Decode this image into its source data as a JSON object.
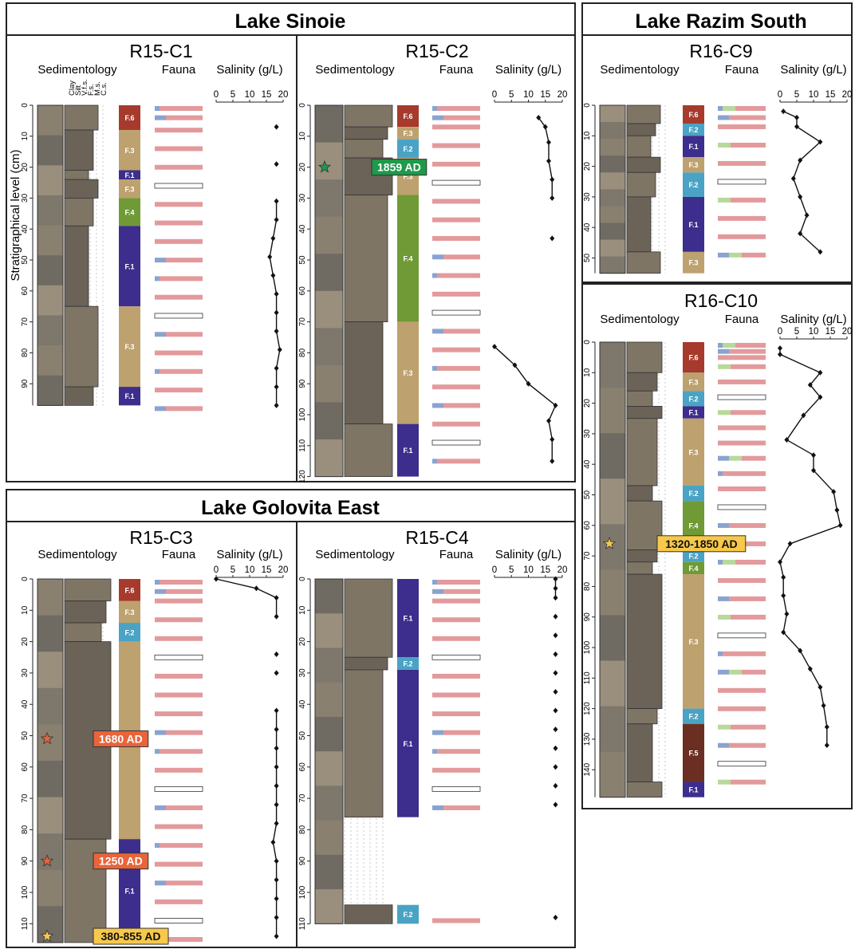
{
  "panels": [
    {
      "title": "Lake Sinoie"
    },
    {
      "title": "Lake Razim South"
    },
    {
      "title": "Lake Golovita East"
    }
  ],
  "y_axis_label": "Stratigraphical level (cm)",
  "headers": {
    "sedimentology": "Sedimentology",
    "fauna": "Fauna",
    "salinity": "Salinity (g/L)"
  },
  "grain_size_labels": [
    "Clay",
    "Silt",
    "V.f.s.",
    "F.s.",
    "M.s.",
    "C.s."
  ],
  "salinity_ticks": [
    0,
    5,
    10,
    15,
    20
  ],
  "colors": {
    "F.1": "#3d2d8c",
    "F.2": "#4aa3c4",
    "F.3": "#bda16e",
    "F.4": "#6f9a35",
    "F.5": "#6a2e22",
    "F.6": "#a63a2c",
    "fauna_pink": "#e39a9c",
    "fauna_blue": "#8aa3cf",
    "fauna_green": "#b8d99a",
    "date_orange": "#e8643a",
    "date_green": "#1e9a4a",
    "date_yellow": "#f7c84a"
  },
  "cores": [
    {
      "id": "R15-C1",
      "depth_ticks": [
        0,
        10,
        20,
        30,
        40,
        50,
        60,
        70,
        80,
        90
      ],
      "units": [
        {
          "label": "F.6",
          "top": 0,
          "bottom": 8
        },
        {
          "label": "F.3",
          "top": 8,
          "bottom": 21
        },
        {
          "label": "F.1",
          "top": 21,
          "bottom": 24
        },
        {
          "label": "F.3",
          "top": 24,
          "bottom": 30
        },
        {
          "label": "F.4",
          "top": 30,
          "bottom": 39
        },
        {
          "label": "F.1",
          "top": 39,
          "bottom": 65
        },
        {
          "label": "F.3",
          "top": 65,
          "bottom": 91
        },
        {
          "label": "F.1",
          "top": 91,
          "bottom": 97
        }
      ],
      "fauna_depths": [
        0,
        3,
        7,
        13,
        19,
        25,
        31,
        37,
        43,
        49,
        55,
        61,
        67,
        73,
        79,
        85,
        91,
        97
      ],
      "salinity": [
        [
          18,
          7
        ],
        [
          18,
          19
        ],
        [
          18,
          31
        ],
        [
          18,
          37
        ],
        [
          17,
          43
        ],
        [
          16,
          49
        ],
        [
          17,
          55
        ],
        [
          18,
          61
        ],
        [
          18,
          67
        ],
        [
          18,
          73
        ],
        [
          19,
          79
        ],
        [
          18,
          85
        ],
        [
          18,
          91
        ],
        [
          18,
          97
        ]
      ],
      "salinity_line": [
        [
          18,
          31
        ],
        [
          18,
          37
        ],
        [
          17,
          43
        ],
        [
          16,
          49
        ],
        [
          17,
          55
        ],
        [
          18,
          61
        ],
        [
          18,
          67
        ],
        [
          18,
          73
        ],
        [
          19,
          79
        ],
        [
          18,
          85
        ],
        [
          18,
          91
        ],
        [
          18,
          97
        ]
      ],
      "dates": []
    },
    {
      "id": "R15-C2",
      "depth_ticks": [
        0,
        10,
        20,
        30,
        40,
        50,
        60,
        70,
        80,
        90,
        100,
        110,
        120
      ],
      "units": [
        {
          "label": "F.6",
          "top": 0,
          "bottom": 7
        },
        {
          "label": "F.3",
          "top": 7,
          "bottom": 11
        },
        {
          "label": "F.2",
          "top": 11,
          "bottom": 17
        },
        {
          "label": "F.3",
          "top": 17,
          "bottom": 29
        },
        {
          "label": "F.4",
          "top": 29,
          "bottom": 70
        },
        {
          "label": "F.3",
          "top": 70,
          "bottom": 103
        },
        {
          "label": "F.1",
          "top": 103,
          "bottom": 120
        }
      ],
      "fauna_depths": [
        0,
        3,
        6,
        12,
        18,
        24,
        30,
        36,
        42,
        48,
        54,
        60,
        66,
        72,
        78,
        84,
        90,
        96,
        102,
        108,
        114
      ],
      "salinity": [
        [
          13,
          4
        ],
        [
          15,
          7
        ],
        [
          16,
          12
        ],
        [
          16,
          18
        ],
        [
          17,
          24
        ],
        [
          17,
          30
        ],
        [
          17,
          43
        ],
        [
          0,
          78
        ],
        [
          6,
          84
        ],
        [
          10,
          90
        ],
        [
          18,
          97
        ],
        [
          16,
          102
        ],
        [
          17,
          108
        ],
        [
          17,
          115
        ]
      ],
      "salinity_line": [
        [
          13,
          4
        ],
        [
          15,
          7
        ],
        [
          16,
          12
        ],
        [
          16,
          18
        ],
        [
          17,
          24
        ],
        [
          17,
          30
        ]
      ],
      "salinity_line2": [
        [
          0,
          78
        ],
        [
          6,
          84
        ],
        [
          10,
          90
        ],
        [
          18,
          97
        ],
        [
          16,
          102
        ],
        [
          17,
          108
        ],
        [
          17,
          115
        ]
      ],
      "dates": [
        {
          "label": "1859 AD",
          "depth": 20,
          "star_color": "date_green"
        }
      ]
    },
    {
      "id": "R16-C9",
      "depth_ticks": [
        0,
        10,
        20,
        30,
        40,
        50
      ],
      "units": [
        {
          "label": "F.6",
          "top": 0,
          "bottom": 6
        },
        {
          "label": "F.2",
          "top": 6,
          "bottom": 10
        },
        {
          "label": "F.1",
          "top": 10,
          "bottom": 17
        },
        {
          "label": "F.3",
          "top": 17,
          "bottom": 22
        },
        {
          "label": "F.2",
          "top": 22,
          "bottom": 30
        },
        {
          "label": "F.1",
          "top": 30,
          "bottom": 48
        },
        {
          "label": "F.3",
          "top": 48,
          "bottom": 55
        }
      ],
      "fauna_depths": [
        0,
        3,
        6,
        12,
        18,
        24,
        30,
        36,
        42,
        48
      ],
      "salinity": [
        [
          1,
          2
        ],
        [
          5,
          4
        ],
        [
          5,
          7
        ],
        [
          12,
          12
        ],
        [
          6,
          18
        ],
        [
          4,
          24
        ],
        [
          6,
          30
        ],
        [
          8,
          36
        ],
        [
          6,
          42
        ],
        [
          12,
          48
        ]
      ],
      "salinity_line": [
        [
          1,
          2
        ],
        [
          5,
          4
        ],
        [
          5,
          7
        ],
        [
          12,
          12
        ],
        [
          6,
          18
        ],
        [
          4,
          24
        ],
        [
          6,
          30
        ],
        [
          8,
          36
        ],
        [
          6,
          42
        ],
        [
          12,
          48
        ]
      ],
      "dates": []
    },
    {
      "id": "R16-C10",
      "depth_ticks": [
        0,
        10,
        20,
        30,
        40,
        50,
        60,
        70,
        80,
        90,
        100,
        110,
        120,
        130,
        140
      ],
      "units": [
        {
          "label": "F.6",
          "top": 0,
          "bottom": 10
        },
        {
          "label": "F.3",
          "top": 10,
          "bottom": 16
        },
        {
          "label": "F.2",
          "top": 16,
          "bottom": 21
        },
        {
          "label": "F.1",
          "top": 21,
          "bottom": 25
        },
        {
          "label": "F.3",
          "top": 25,
          "bottom": 47
        },
        {
          "label": "F.2",
          "top": 47,
          "bottom": 52
        },
        {
          "label": "F.4",
          "top": 52,
          "bottom": 68
        },
        {
          "label": "F.2",
          "top": 68,
          "bottom": 72
        },
        {
          "label": "F.4",
          "top": 72,
          "bottom": 76
        },
        {
          "label": "F.3",
          "top": 76,
          "bottom": 120
        },
        {
          "label": "F.2",
          "top": 120,
          "bottom": 125
        },
        {
          "label": "F.5",
          "top": 125,
          "bottom": 144
        },
        {
          "label": "F.1",
          "top": 144,
          "bottom": 149
        }
      ],
      "fauna_depths": [
        0,
        2,
        4,
        7,
        12,
        17,
        22,
        27,
        32,
        37,
        42,
        47,
        53,
        59,
        65,
        71,
        77,
        83,
        89,
        95,
        101,
        107,
        113,
        119,
        125,
        131,
        137,
        143
      ],
      "salinity": [
        [
          0,
          2
        ],
        [
          0,
          4
        ],
        [
          12,
          10
        ],
        [
          9,
          14
        ],
        [
          12,
          18
        ],
        [
          7,
          24
        ],
        [
          2,
          32
        ],
        [
          10,
          37
        ],
        [
          10,
          42
        ],
        [
          16,
          49
        ],
        [
          17,
          55
        ],
        [
          18,
          60
        ],
        [
          3,
          66
        ],
        [
          0,
          72
        ],
        [
          1,
          77
        ],
        [
          1,
          83
        ],
        [
          2,
          89
        ],
        [
          1,
          95
        ],
        [
          6,
          101
        ],
        [
          9,
          107
        ],
        [
          12,
          113
        ],
        [
          13,
          119
        ],
        [
          14,
          126
        ],
        [
          14,
          132
        ]
      ],
      "salinity_line": [
        [
          0,
          2
        ],
        [
          0,
          4
        ],
        [
          12,
          10
        ],
        [
          9,
          14
        ],
        [
          12,
          18
        ],
        [
          7,
          24
        ],
        [
          2,
          32
        ],
        [
          10,
          37
        ],
        [
          10,
          42
        ],
        [
          16,
          49
        ],
        [
          17,
          55
        ],
        [
          18,
          60
        ],
        [
          3,
          66
        ],
        [
          0,
          72
        ],
        [
          1,
          77
        ],
        [
          1,
          83
        ],
        [
          2,
          89
        ],
        [
          1,
          95
        ],
        [
          6,
          101
        ],
        [
          9,
          107
        ],
        [
          12,
          113
        ],
        [
          13,
          119
        ],
        [
          14,
          126
        ],
        [
          14,
          132
        ]
      ],
      "dates": [
        {
          "label": "1320-1850 AD",
          "depth": 66,
          "star_color": "date_yellow"
        }
      ]
    },
    {
      "id": "R15-C3",
      "depth_ticks": [
        0,
        10,
        20,
        30,
        40,
        50,
        60,
        70,
        80,
        90,
        100,
        110
      ],
      "units": [
        {
          "label": "F.6",
          "top": 0,
          "bottom": 7
        },
        {
          "label": "F.3",
          "top": 7,
          "bottom": 14
        },
        {
          "label": "F.2",
          "top": 14,
          "bottom": 20
        },
        {
          "label": "F.3",
          "top": 20,
          "bottom": 83
        },
        {
          "label": "F.1",
          "top": 83,
          "bottom": 116
        }
      ],
      "fauna_depths": [
        0,
        3,
        6,
        12,
        18,
        24,
        30,
        36,
        42,
        48,
        54,
        60,
        66,
        72,
        78,
        84,
        90,
        96,
        102,
        108,
        114
      ],
      "salinity": [
        [
          0,
          0
        ],
        [
          12,
          3
        ],
        [
          18,
          6
        ],
        [
          18,
          12
        ],
        [
          18,
          24
        ],
        [
          18,
          30
        ],
        [
          18,
          42
        ],
        [
          18,
          48
        ],
        [
          18,
          54
        ],
        [
          18,
          60
        ],
        [
          18,
          66
        ],
        [
          18,
          72
        ],
        [
          18,
          78
        ],
        [
          17,
          84
        ],
        [
          18,
          90
        ],
        [
          18,
          96
        ],
        [
          18,
          102
        ],
        [
          18,
          108
        ],
        [
          18,
          114
        ]
      ],
      "salinity_line": [
        [
          0,
          0
        ],
        [
          12,
          3
        ],
        [
          18,
          6
        ],
        [
          18,
          12
        ]
      ],
      "salinity_line2": [
        [
          18,
          42
        ],
        [
          18,
          48
        ],
        [
          18,
          54
        ],
        [
          18,
          60
        ],
        [
          18,
          66
        ],
        [
          18,
          72
        ],
        [
          18,
          78
        ],
        [
          17,
          84
        ],
        [
          18,
          90
        ],
        [
          18,
          96
        ],
        [
          18,
          102
        ],
        [
          18,
          108
        ],
        [
          18,
          114
        ]
      ],
      "dates": [
        {
          "label": "1680 AD",
          "depth": 51,
          "star_color": "date_orange"
        },
        {
          "label": "1250 AD",
          "depth": 90,
          "star_color": "date_orange"
        },
        {
          "label": "380-855 AD",
          "depth": 114,
          "star_color": "date_yellow"
        }
      ]
    },
    {
      "id": "R15-C4",
      "depth_ticks": [
        0,
        10,
        20,
        30,
        40,
        50,
        60,
        70,
        80,
        90,
        100,
        110
      ],
      "units": [
        {
          "label": "F.1",
          "top": 0,
          "bottom": 25
        },
        {
          "label": "F.2",
          "top": 25,
          "bottom": 29
        },
        {
          "label": "F.1",
          "top": 29,
          "bottom": 76
        },
        {
          "label": "F.2",
          "top": 104,
          "bottom": 110
        }
      ],
      "fauna_depths": [
        0,
        3,
        6,
        12,
        18,
        24,
        30,
        36,
        42,
        48,
        54,
        60,
        66,
        72,
        108
      ],
      "salinity": [
        [
          18,
          0
        ],
        [
          18,
          3
        ],
        [
          18,
          6
        ],
        [
          18,
          12
        ],
        [
          18,
          18
        ],
        [
          18,
          24
        ],
        [
          18,
          30
        ],
        [
          18,
          36
        ],
        [
          18,
          42
        ],
        [
          18,
          48
        ],
        [
          18,
          54
        ],
        [
          18,
          60
        ],
        [
          18,
          66
        ],
        [
          18,
          72
        ],
        [
          18,
          108
        ]
      ],
      "salinity_line": [
        [
          18,
          0
        ],
        [
          18,
          3
        ],
        [
          18,
          6
        ]
      ],
      "dates": []
    }
  ]
}
